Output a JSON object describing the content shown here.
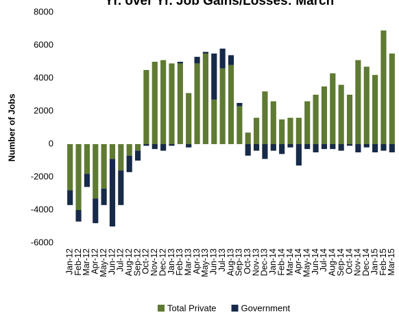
{
  "chart_data": {
    "type": "stacked_bar",
    "title": "Yr. over Yr. Job Gains/Losses: March",
    "y_label": "Number of Jobs",
    "categories": [
      "Jan-12",
      "Feb-12",
      "Mar-12",
      "Apr-12",
      "May-12",
      "Jun-12",
      "Jul-12",
      "Aug-12",
      "Sep-12",
      "Oct-12",
      "Nov-12",
      "Dec-12",
      "Jan-13",
      "Feb-13",
      "Mar-13",
      "Apr-13",
      "May-13",
      "Jun-13",
      "Jul-13",
      "Aug-13",
      "Sep-13",
      "Oct-13",
      "Nov-13",
      "Dec-13",
      "Jan-14",
      "Feb-14",
      "Mar-14",
      "Apr-14",
      "May-14",
      "Jun-14",
      "Jul-14",
      "Aug-14",
      "Sep-14",
      "Oct-14",
      "Nov-14",
      "Dec-14",
      "Jan-15",
      "Feb-15",
      "Mar-15"
    ],
    "series": [
      {
        "name": "Total Private",
        "color": "#5f7a32",
        "values": [
          -2800,
          -4000,
          -1800,
          -3300,
          -2700,
          -900,
          -1600,
          -700,
          -400,
          4500,
          5000,
          5100,
          4900,
          4900,
          3100,
          4900,
          5500,
          2700,
          4600,
          4800,
          2300,
          700,
          1600,
          3200,
          2600,
          1500,
          1600,
          1600,
          2600,
          3000,
          3500,
          4300,
          3600,
          3000,
          5100,
          4700,
          4200,
          6900,
          5500
        ]
      },
      {
        "name": "Government",
        "color": "#172a48",
        "values": [
          -900,
          -700,
          -800,
          -1500,
          -1000,
          -4100,
          -2100,
          -1000,
          -600,
          -100,
          -300,
          -400,
          -100,
          100,
          -200,
          400,
          100,
          2800,
          1200,
          600,
          200,
          -700,
          -400,
          -900,
          -400,
          -600,
          -200,
          -1300,
          -300,
          -500,
          -300,
          -300,
          -400,
          -100,
          -500,
          -200,
          -500,
          -400,
          -500
        ]
      }
    ],
    "ylim": [
      -6000,
      8000
    ],
    "yticks": [
      -6000,
      -4000,
      -2000,
      0,
      2000,
      4000,
      6000,
      8000
    ],
    "grid": false,
    "legend": "bottom"
  }
}
